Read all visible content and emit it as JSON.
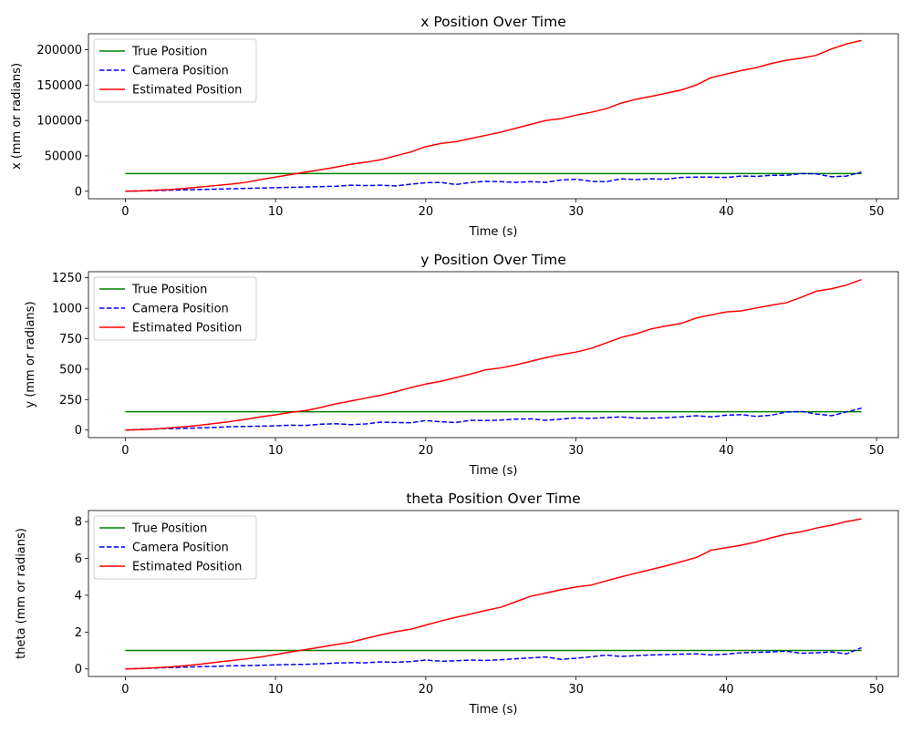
{
  "colors": {
    "true": "#008000",
    "camera": "#0000ff",
    "estimated": "#ff0000",
    "axis": "#000000",
    "background": "#ffffff"
  },
  "legend": {
    "placement": "top-left",
    "entries": [
      "True Position",
      "Camera Position",
      "Estimated Position"
    ]
  },
  "chart_data": [
    {
      "type": "line",
      "title": "x Position Over Time",
      "xlabel": "Time (s)",
      "ylabel": "x (mm or radians)",
      "xlim": [
        -2.45,
        51.45
      ],
      "ylim": [
        -10600,
        222500
      ],
      "xticks": [
        0,
        10,
        20,
        30,
        40,
        50
      ],
      "yticks": [
        0,
        50000,
        100000,
        150000,
        200000
      ],
      "ytick_labels": [
        "0",
        "50000",
        "100000",
        "150000",
        "200000"
      ],
      "grid": false,
      "x": [
        0,
        1,
        2,
        3,
        4,
        5,
        6,
        7,
        8,
        9,
        10,
        11,
        12,
        13,
        14,
        15,
        16,
        17,
        18,
        19,
        20,
        21,
        22,
        23,
        24,
        25,
        26,
        27,
        28,
        29,
        30,
        31,
        32,
        33,
        34,
        35,
        36,
        37,
        38,
        39,
        40,
        41,
        42,
        43,
        44,
        45,
        46,
        47,
        48,
        49
      ],
      "series": [
        {
          "name": "True Position",
          "style": "solid",
          "color": "#008000",
          "values": [
            25000,
            25000,
            25000,
            25000,
            25000,
            25000,
            25000,
            25000,
            25000,
            25000,
            25000,
            25000,
            25000,
            25000,
            25000,
            25000,
            25000,
            25000,
            25000,
            25000,
            25000,
            25000,
            25000,
            25000,
            25000,
            25000,
            25000,
            25000,
            25000,
            25000,
            25000,
            25000,
            25000,
            25000,
            25000,
            25000,
            25000,
            25000,
            25000,
            25000,
            25000,
            25000,
            25000,
            25000,
            25000,
            25000,
            25000,
            25000,
            25000,
            25000
          ]
        },
        {
          "name": "Camera Position",
          "style": "dashed",
          "color": "#0000ff",
          "values": [
            0,
            500,
            1000,
            1500,
            2000,
            2500,
            3000,
            3500,
            4000,
            4500,
            5000,
            5500,
            6000,
            6500,
            7000,
            8500,
            8000,
            8500,
            7500,
            10000,
            12000,
            12500,
            9500,
            12500,
            14000,
            13500,
            12500,
            13500,
            12500,
            16000,
            17000,
            14000,
            13500,
            17500,
            16500,
            17500,
            17000,
            19500,
            20000,
            20000,
            19500,
            21500,
            21000,
            22500,
            22500,
            25000,
            24500,
            20500,
            21500,
            27000
          ]
        },
        {
          "name": "Estimated Position",
          "style": "solid",
          "color": "#ff0000",
          "values": [
            0,
            500,
            1500,
            2500,
            4000,
            6000,
            8000,
            10000,
            12500,
            16500,
            20000,
            23500,
            27000,
            30500,
            34000,
            38000,
            41000,
            44500,
            50000,
            55500,
            63000,
            67500,
            70000,
            74500,
            79000,
            83500,
            89000,
            94500,
            100000,
            102500,
            107500,
            111500,
            116500,
            124500,
            130000,
            134000,
            138500,
            143000,
            150000,
            160500,
            165500,
            170500,
            174500,
            180500,
            185000,
            188000,
            192000,
            201000,
            208000,
            213000
          ]
        }
      ]
    },
    {
      "type": "line",
      "title": "y Position Over Time",
      "xlabel": "Time (s)",
      "ylabel": "y (mm or radians)",
      "xlim": [
        -2.45,
        51.45
      ],
      "ylim": [
        -62,
        1300
      ],
      "xticks": [
        0,
        10,
        20,
        30,
        40,
        50
      ],
      "yticks": [
        0,
        250,
        500,
        750,
        1000,
        1250
      ],
      "ytick_labels": [
        "0",
        "250",
        "500",
        "750",
        "1000",
        "1250"
      ],
      "grid": false,
      "x": [
        0,
        1,
        2,
        3,
        4,
        5,
        6,
        7,
        8,
        9,
        10,
        11,
        12,
        13,
        14,
        15,
        16,
        17,
        18,
        19,
        20,
        21,
        22,
        23,
        24,
        25,
        26,
        27,
        28,
        29,
        30,
        31,
        32,
        33,
        34,
        35,
        36,
        37,
        38,
        39,
        40,
        41,
        42,
        43,
        44,
        45,
        46,
        47,
        48,
        49
      ],
      "series": [
        {
          "name": "True Position",
          "style": "solid",
          "color": "#008000",
          "values": [
            150,
            150,
            150,
            150,
            150,
            150,
            150,
            150,
            150,
            150,
            150,
            150,
            150,
            150,
            150,
            150,
            150,
            150,
            150,
            150,
            150,
            150,
            150,
            150,
            150,
            150,
            150,
            150,
            150,
            150,
            150,
            150,
            150,
            150,
            150,
            150,
            150,
            150,
            150,
            150,
            150,
            150,
            150,
            150,
            150,
            150,
            150,
            150,
            150,
            150
          ]
        },
        {
          "name": "Camera Position",
          "style": "dashed",
          "color": "#0000ff",
          "values": [
            0,
            5,
            10,
            12,
            15,
            18,
            22,
            28,
            30,
            32,
            35,
            40,
            38,
            48,
            52,
            45,
            50,
            65,
            62,
            60,
            78,
            68,
            62,
            80,
            78,
            82,
            90,
            92,
            80,
            90,
            100,
            96,
            102,
            108,
            98,
            98,
            102,
            108,
            118,
            108,
            122,
            126,
            112,
            122,
            148,
            152,
            132,
            118,
            148,
            180
          ]
        },
        {
          "name": "Estimated Position",
          "style": "solid",
          "color": "#ff0000",
          "values": [
            0,
            3,
            8,
            18,
            28,
            40,
            55,
            70,
            88,
            108,
            125,
            145,
            160,
            185,
            215,
            238,
            262,
            285,
            315,
            348,
            378,
            400,
            430,
            460,
            495,
            510,
            535,
            565,
            595,
            620,
            640,
            670,
            715,
            760,
            790,
            830,
            855,
            875,
            920,
            945,
            970,
            978,
            1002,
            1025,
            1045,
            1090,
            1140,
            1160,
            1190,
            1235
          ]
        }
      ]
    },
    {
      "type": "line",
      "title": "theta Position Over Time",
      "xlabel": "Time (s)",
      "ylabel": "theta (mm or radians)",
      "xlim": [
        -2.45,
        51.45
      ],
      "ylim": [
        -0.41,
        8.6
      ],
      "xticks": [
        0,
        10,
        20,
        30,
        40,
        50
      ],
      "yticks": [
        0,
        2,
        4,
        6,
        8
      ],
      "ytick_labels": [
        "0",
        "2",
        "4",
        "6",
        "8"
      ],
      "grid": false,
      "x": [
        0,
        1,
        2,
        3,
        4,
        5,
        6,
        7,
        8,
        9,
        10,
        11,
        12,
        13,
        14,
        15,
        16,
        17,
        18,
        19,
        20,
        21,
        22,
        23,
        24,
        25,
        26,
        27,
        28,
        29,
        30,
        31,
        32,
        33,
        34,
        35,
        36,
        37,
        38,
        39,
        40,
        41,
        42,
        43,
        44,
        45,
        46,
        47,
        48,
        49
      ],
      "series": [
        {
          "name": "True Position",
          "style": "solid",
          "color": "#008000",
          "values": [
            1,
            1,
            1,
            1,
            1,
            1,
            1,
            1,
            1,
            1,
            1,
            1,
            1,
            1,
            1,
            1,
            1,
            1,
            1,
            1,
            1,
            1,
            1,
            1,
            1,
            1,
            1,
            1,
            1,
            1,
            1,
            1,
            1,
            1,
            1,
            1,
            1,
            1,
            1,
            1,
            1,
            1,
            1,
            1,
            1,
            1,
            1,
            1,
            1,
            1
          ]
        },
        {
          "name": "Camera Position",
          "style": "dashed",
          "color": "#0000ff",
          "values": [
            0,
            0.02,
            0.05,
            0.07,
            0.1,
            0.12,
            0.14,
            0.17,
            0.18,
            0.2,
            0.22,
            0.24,
            0.25,
            0.28,
            0.32,
            0.34,
            0.33,
            0.38,
            0.36,
            0.4,
            0.48,
            0.42,
            0.44,
            0.48,
            0.46,
            0.5,
            0.55,
            0.6,
            0.65,
            0.52,
            0.58,
            0.66,
            0.75,
            0.68,
            0.72,
            0.76,
            0.78,
            0.8,
            0.82,
            0.76,
            0.8,
            0.88,
            0.9,
            0.92,
            0.96,
            0.85,
            0.88,
            0.92,
            0.82,
            1.15
          ]
        },
        {
          "name": "Estimated Position",
          "style": "solid",
          "color": "#ff0000",
          "values": [
            0,
            0.02,
            0.06,
            0.11,
            0.18,
            0.26,
            0.36,
            0.45,
            0.54,
            0.65,
            0.78,
            0.92,
            1.05,
            1.18,
            1.32,
            1.45,
            1.65,
            1.85,
            2.02,
            2.15,
            2.38,
            2.6,
            2.8,
            2.98,
            3.18,
            3.35,
            3.65,
            3.95,
            4.12,
            4.3,
            4.45,
            4.55,
            4.78,
            5.0,
            5.2,
            5.4,
            5.6,
            5.82,
            6.05,
            6.45,
            6.58,
            6.72,
            6.9,
            7.12,
            7.32,
            7.45,
            7.65,
            7.8,
            8.0,
            8.15
          ]
        }
      ]
    }
  ]
}
